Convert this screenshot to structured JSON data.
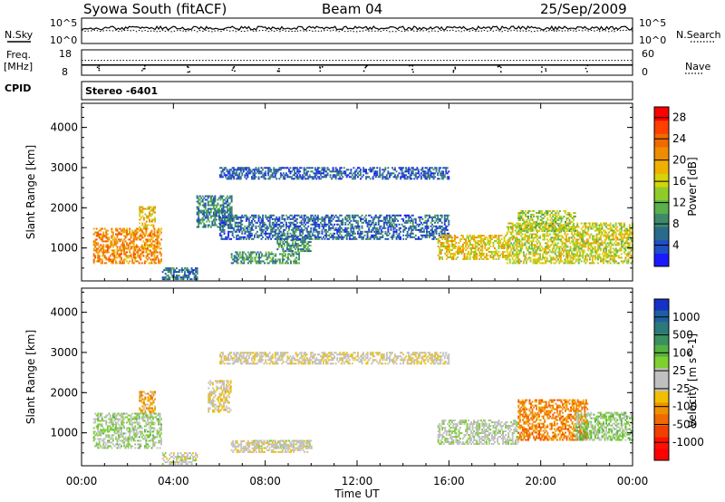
{
  "header": {
    "station": "Syowa South (fitACF)",
    "beam": "Beam 04",
    "date": "25/Sep/2009"
  },
  "summary": {
    "nsky_label": "N.Sky",
    "nsearch_label": "N.Search",
    "freq_label_1": "Freq.",
    "freq_label_2": "[MHz]",
    "nave_label": "Nave",
    "cpid_label": "CPID",
    "cpid_value": "Stereo -6401",
    "noise_ticks": [
      "10^5",
      "10^0"
    ],
    "freq_ticks": [
      "18",
      "8"
    ],
    "nave_ticks": [
      "60",
      "0"
    ]
  },
  "axes": {
    "ylabel": "Slant Range [km]",
    "xlabel": "Time UT",
    "yticks": [
      "1000",
      "2000",
      "3000",
      "4000"
    ],
    "xticks": [
      "00:00",
      "04:00",
      "08:00",
      "12:00",
      "16:00",
      "20:00",
      "00:00"
    ]
  },
  "colorbars": {
    "power": {
      "label": "Power [dB]",
      "ticks": [
        "4",
        "8",
        "12",
        "16",
        "20",
        "24",
        "28"
      ],
      "colors": [
        "#1a1aff",
        "#1f4fc4",
        "#2a6a8a",
        "#3d8a6a",
        "#5ab04a",
        "#8fcc2a",
        "#d4d40a",
        "#f0b000",
        "#f08c00",
        "#f06a00",
        "#ff4000",
        "#ff0000"
      ]
    },
    "velocity": {
      "label": "Velocity [m s^-1]",
      "ticks": [
        "1000",
        "500",
        "100",
        "25",
        "-25",
        "-100",
        "-500",
        "-1000"
      ],
      "colors": [
        "#1432c8",
        "#1d60a0",
        "#2a7a7a",
        "#3a9060",
        "#55b040",
        "#7dd030",
        "#c0c0c0",
        "#c0c0c0",
        "#f0c000",
        "#f09000",
        "#f06a00",
        "#f04000",
        "#ff1000",
        "#ff0000"
      ]
    }
  },
  "chart_data": [
    {
      "type": "line",
      "title": "Syowa South (fitACF)",
      "panel": "N.Sky / N.Search",
      "x_range": [
        0,
        24
      ],
      "y_scale": "log",
      "ylim": [
        1,
        100000
      ],
      "note_values": "noise level ~ 10^4 across the day"
    },
    {
      "type": "line",
      "panel": "Freq. [MHz] / Nave",
      "x_range": [
        0,
        24
      ],
      "ylim_freq": [
        8,
        18
      ],
      "ylim_nave": [
        0,
        60
      ],
      "freq_value_mhz": 12,
      "nave_value": 35
    },
    {
      "type": "heatmap",
      "panel": "Power [dB]",
      "xlabel": "Time UT",
      "ylabel": "Slant Range [km]",
      "x_range_hours": [
        0,
        24
      ],
      "ylim_km": [
        180,
        4600
      ],
      "clim": [
        0,
        30
      ],
      "regions": [
        {
          "t": [
            0.5,
            3.5
          ],
          "r": [
            600,
            1500
          ],
          "level": 22
        },
        {
          "t": [
            2.5,
            3.2
          ],
          "r": [
            1500,
            2000
          ],
          "level": 18
        },
        {
          "t": [
            3.5,
            5.0
          ],
          "r": [
            200,
            500
          ],
          "level": 6
        },
        {
          "t": [
            5.0,
            6.5
          ],
          "r": [
            1500,
            2300
          ],
          "level": 7
        },
        {
          "t": [
            6.5,
            9.5
          ],
          "r": [
            600,
            900
          ],
          "level": 9
        },
        {
          "t": [
            8.5,
            10.0
          ],
          "r": [
            900,
            1300
          ],
          "level": 8
        },
        {
          "t": [
            6.0,
            16.0
          ],
          "r": [
            1200,
            1800
          ],
          "level": 5
        },
        {
          "t": [
            6.0,
            16.0
          ],
          "r": [
            2700,
            3000
          ],
          "level": 4
        },
        {
          "t": [
            15.5,
            18.5
          ],
          "r": [
            700,
            1300
          ],
          "level": 18
        },
        {
          "t": [
            18.5,
            24.0
          ],
          "r": [
            600,
            1600
          ],
          "level": 16
        },
        {
          "t": [
            19.0,
            21.5
          ],
          "r": [
            1400,
            1900
          ],
          "level": 14
        }
      ]
    },
    {
      "type": "heatmap",
      "panel": "Velocity [m s^-1]",
      "xlabel": "Time UT",
      "ylabel": "Slant Range [km]",
      "x_range_hours": [
        0,
        24
      ],
      "ylim_km": [
        180,
        4600
      ],
      "clim": [
        -1000,
        1000
      ],
      "regions": [
        {
          "t": [
            0.5,
            3.5
          ],
          "r": [
            600,
            1500
          ],
          "value": 150
        },
        {
          "t": [
            2.5,
            3.2
          ],
          "r": [
            1500,
            2000
          ],
          "value": -300
        },
        {
          "t": [
            3.5,
            5.0
          ],
          "r": [
            200,
            500
          ],
          "value": 0
        },
        {
          "t": [
            5.5,
            6.5
          ],
          "r": [
            1500,
            2300
          ],
          "value": -120
        },
        {
          "t": [
            6.5,
            10.0
          ],
          "r": [
            500,
            800
          ],
          "value": -60
        },
        {
          "t": [
            7.5,
            10.0
          ],
          "r": [
            600,
            800
          ],
          "value": 0
        },
        {
          "t": [
            6.0,
            16.0
          ],
          "r": [
            2700,
            3000
          ],
          "value": -80
        },
        {
          "t": [
            15.5,
            19.0
          ],
          "r": [
            700,
            1300
          ],
          "value": 60
        },
        {
          "t": [
            19.0,
            22.0
          ],
          "r": [
            800,
            1800
          ],
          "value": -450
        },
        {
          "t": [
            21.5,
            24.0
          ],
          "r": [
            800,
            1500
          ],
          "value": 200
        }
      ]
    }
  ]
}
